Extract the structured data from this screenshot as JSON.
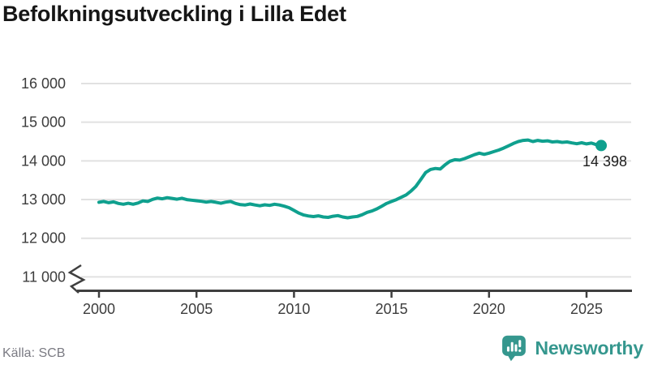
{
  "title": "Befolkningsutveckling i Lilla Edet",
  "source": "Källa: SCB",
  "branding": {
    "name": "Newsworthy",
    "icon": "newsworthy-bubble-chart-icon",
    "color": "#35978e"
  },
  "chart_data": {
    "type": "line",
    "title": "Befolkningsutveckling i Lilla Edet",
    "xlabel": "",
    "ylabel": "",
    "x_ticks": [
      2000,
      2005,
      2010,
      2015,
      2020,
      2025
    ],
    "x_tick_labels": [
      "2000",
      "2005",
      "2010",
      "2015",
      "2020",
      "2025"
    ],
    "y_ticks": [
      16000,
      15000,
      14000,
      13000,
      12000,
      11000
    ],
    "y_tick_labels": [
      "16 000",
      "15 000",
      "14 000",
      "13 000",
      "12 000",
      "11 000"
    ],
    "ylim": [
      11000,
      16000
    ],
    "xlim": [
      1999.1,
      2027.3
    ],
    "grid": true,
    "axis_break": true,
    "legend_position": "none",
    "line_color": "#0fa08e",
    "grid_color": "#e1e1e1",
    "axis_color": "#3f3f3f",
    "tick_label_color": "#3c3c3c",
    "end_label": "14 398",
    "end_label_color": "#1c1c1c",
    "series": [
      {
        "name": "Befolkning",
        "points": [
          [
            2000.0,
            12930
          ],
          [
            2000.25,
            12950
          ],
          [
            2000.5,
            12920
          ],
          [
            2000.75,
            12940
          ],
          [
            2001.0,
            12900
          ],
          [
            2001.25,
            12880
          ],
          [
            2001.5,
            12905
          ],
          [
            2001.75,
            12880
          ],
          [
            2002.0,
            12910
          ],
          [
            2002.25,
            12965
          ],
          [
            2002.5,
            12950
          ],
          [
            2002.75,
            13005
          ],
          [
            2003.0,
            13040
          ],
          [
            2003.25,
            13020
          ],
          [
            2003.5,
            13050
          ],
          [
            2003.75,
            13030
          ],
          [
            2004.0,
            13010
          ],
          [
            2004.25,
            13035
          ],
          [
            2004.5,
            13000
          ],
          [
            2004.75,
            12985
          ],
          [
            2005.0,
            12970
          ],
          [
            2005.25,
            12955
          ],
          [
            2005.5,
            12935
          ],
          [
            2005.75,
            12950
          ],
          [
            2006.0,
            12930
          ],
          [
            2006.25,
            12905
          ],
          [
            2006.5,
            12935
          ],
          [
            2006.75,
            12950
          ],
          [
            2007.0,
            12900
          ],
          [
            2007.25,
            12870
          ],
          [
            2007.5,
            12860
          ],
          [
            2007.75,
            12885
          ],
          [
            2008.0,
            12860
          ],
          [
            2008.25,
            12840
          ],
          [
            2008.5,
            12865
          ],
          [
            2008.75,
            12850
          ],
          [
            2009.0,
            12880
          ],
          [
            2009.25,
            12860
          ],
          [
            2009.5,
            12830
          ],
          [
            2009.75,
            12790
          ],
          [
            2010.0,
            12720
          ],
          [
            2010.25,
            12650
          ],
          [
            2010.5,
            12600
          ],
          [
            2010.75,
            12575
          ],
          [
            2011.0,
            12560
          ],
          [
            2011.25,
            12580
          ],
          [
            2011.5,
            12550
          ],
          [
            2011.75,
            12540
          ],
          [
            2012.0,
            12570
          ],
          [
            2012.25,
            12585
          ],
          [
            2012.5,
            12550
          ],
          [
            2012.75,
            12530
          ],
          [
            2013.0,
            12550
          ],
          [
            2013.25,
            12565
          ],
          [
            2013.5,
            12610
          ],
          [
            2013.75,
            12670
          ],
          [
            2014.0,
            12705
          ],
          [
            2014.25,
            12760
          ],
          [
            2014.5,
            12830
          ],
          [
            2014.75,
            12900
          ],
          [
            2015.0,
            12950
          ],
          [
            2015.25,
            13000
          ],
          [
            2015.5,
            13060
          ],
          [
            2015.75,
            13120
          ],
          [
            2016.0,
            13220
          ],
          [
            2016.25,
            13340
          ],
          [
            2016.5,
            13520
          ],
          [
            2016.75,
            13700
          ],
          [
            2017.0,
            13780
          ],
          [
            2017.25,
            13805
          ],
          [
            2017.5,
            13790
          ],
          [
            2017.75,
            13900
          ],
          [
            2018.0,
            13990
          ],
          [
            2018.25,
            14030
          ],
          [
            2018.5,
            14020
          ],
          [
            2018.75,
            14060
          ],
          [
            2019.0,
            14110
          ],
          [
            2019.25,
            14160
          ],
          [
            2019.5,
            14200
          ],
          [
            2019.75,
            14170
          ],
          [
            2020.0,
            14200
          ],
          [
            2020.25,
            14240
          ],
          [
            2020.5,
            14280
          ],
          [
            2020.75,
            14330
          ],
          [
            2021.0,
            14390
          ],
          [
            2021.25,
            14450
          ],
          [
            2021.5,
            14500
          ],
          [
            2021.75,
            14530
          ],
          [
            2022.0,
            14540
          ],
          [
            2022.25,
            14500
          ],
          [
            2022.5,
            14530
          ],
          [
            2022.75,
            14510
          ],
          [
            2023.0,
            14520
          ],
          [
            2023.25,
            14490
          ],
          [
            2023.5,
            14500
          ],
          [
            2023.75,
            14480
          ],
          [
            2024.0,
            14490
          ],
          [
            2024.25,
            14465
          ],
          [
            2024.5,
            14445
          ],
          [
            2024.75,
            14470
          ],
          [
            2025.0,
            14440
          ],
          [
            2025.25,
            14460
          ],
          [
            2025.5,
            14420
          ],
          [
            2025.75,
            14398
          ]
        ]
      }
    ]
  }
}
